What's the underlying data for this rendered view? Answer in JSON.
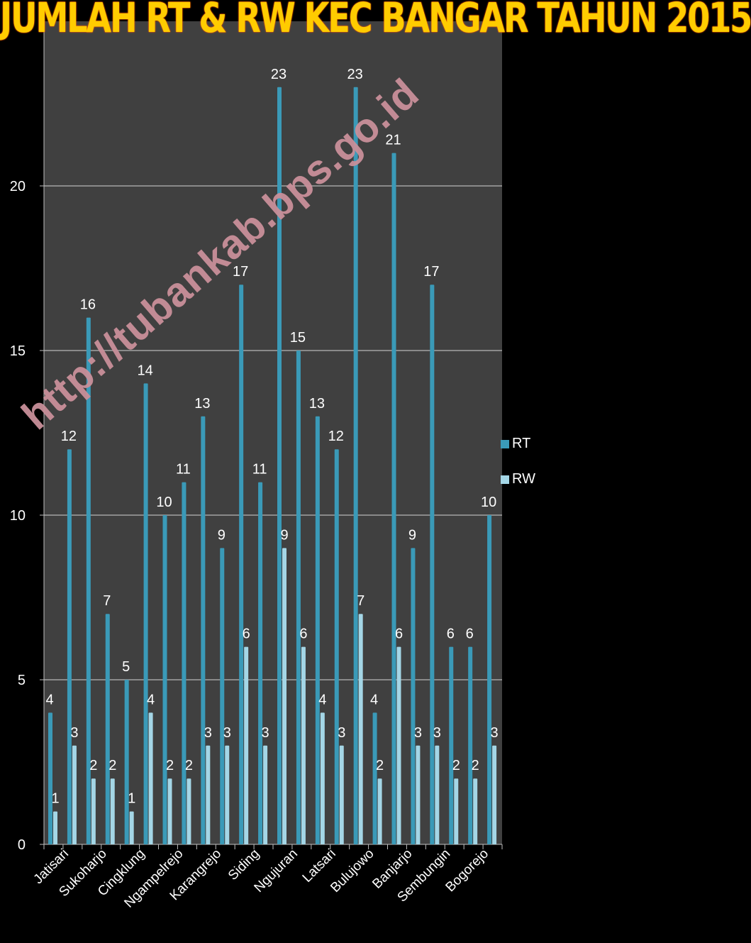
{
  "title": "JUMLAH RT & RW KEC BANGAR TAHUN 2015",
  "watermark": "http://tubankab.bps.go.id",
  "colors": {
    "rt": "#3a9ab8",
    "rw": "#a4d6e6",
    "plot_bg": "#404040",
    "grid": "#8a8a8a"
  },
  "chart_data": {
    "type": "bar",
    "categories": [
      "Jatisari",
      "",
      "Sukoharjo",
      "",
      "Cingklung",
      "",
      "Ngampelrejo",
      "",
      "Karangrejo",
      "",
      "Siding",
      "",
      "Ngujuran",
      "",
      "Latsari",
      "",
      "Bulujowo",
      "",
      "Banjarjo",
      "",
      "Sembungin",
      "",
      "Bogorejo",
      ""
    ],
    "series": [
      {
        "name": "RT",
        "values": [
          4,
          12,
          16,
          7,
          5,
          14,
          10,
          11,
          13,
          9,
          17,
          11,
          23,
          15,
          13,
          12,
          23,
          4,
          21,
          9,
          17,
          6,
          6,
          10
        ]
      },
      {
        "name": "RW",
        "values": [
          1,
          3,
          2,
          2,
          1,
          4,
          2,
          2,
          3,
          3,
          6,
          3,
          9,
          6,
          4,
          3,
          7,
          2,
          6,
          3,
          3,
          2,
          2,
          3
        ]
      }
    ],
    "ylim": [
      0,
      25
    ],
    "yticks": [
      0,
      5,
      10,
      15,
      20
    ],
    "grid": true,
    "legend": "right"
  }
}
